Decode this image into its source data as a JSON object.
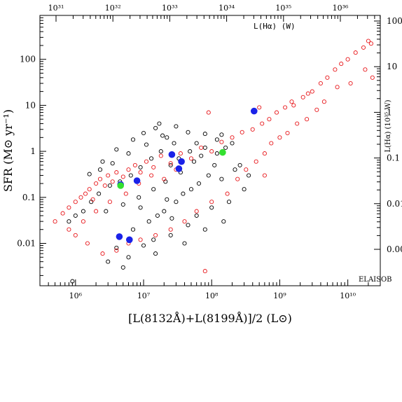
{
  "chart_data": {
    "type": "scatter",
    "title": "",
    "xlabel": "[L(8132Å)+L(8199Å)]/2 (L⊙)",
    "ylabel": "SFR (M⊙ yr⁻¹)",
    "top_axis_label": "L(Hα) (W)",
    "right_axis_label": "L(Hα) (10³⁵ W)",
    "annotation": "ELAISOB",
    "x_scale": "log",
    "y_scale": "log",
    "xlim": [
      300000,
      30000000000
    ],
    "ylim": [
      0.0012,
      900
    ],
    "x_ticks": [
      1000000,
      10000000,
      100000000,
      1000000000,
      10000000000
    ],
    "x_tick_labels": [
      "10⁶",
      "10⁷",
      "10⁸",
      "10⁹",
      "10¹⁰"
    ],
    "y_ticks": [
      0.01,
      0.1,
      1,
      10,
      100
    ],
    "y_tick_labels": [
      "0.01",
      "0.1",
      "1",
      "10",
      "100"
    ],
    "top_ticks": [
      31,
      32,
      33,
      34,
      35,
      36
    ],
    "top_tick_labels": [
      "10³¹",
      "10³²",
      "10³³",
      "10³⁴",
      "10³⁵",
      "10³⁶"
    ],
    "right_ticks": [
      0.001,
      0.01,
      0.1,
      1,
      10,
      100
    ],
    "right_tick_labels": [
      "0.00",
      "0.01",
      "0.1",
      "1",
      "10",
      "100"
    ],
    "colors": {
      "black_points": "#000000",
      "red_points": "#e8171b",
      "blue_points": "#1a22e8",
      "green_points": "#33e02f"
    },
    "series": [
      {
        "marker": "open-circle",
        "color": "#000000",
        "values": [
          [
            1600000.0,
            0.32
          ],
          [
            2500000.0,
            0.6
          ],
          [
            4000000.0,
            1.1
          ],
          [
            7000000.0,
            1.8
          ],
          [
            10000000.0,
            2.5
          ],
          [
            15000000.0,
            3.2
          ],
          [
            22000000.0,
            2.0
          ],
          [
            30000000.0,
            3.5
          ],
          [
            45000000.0,
            2.6
          ],
          [
            60000000.0,
            1.5
          ],
          [
            80000000.0,
            1.2
          ],
          [
            120000000.0,
            0.9
          ],
          [
            90000000.0,
            0.3
          ],
          [
            50000000.0,
            0.15
          ],
          [
            30000000.0,
            0.08
          ],
          [
            20000000.0,
            0.05
          ],
          [
            12000000.0,
            0.03
          ],
          [
            7000000.0,
            0.02
          ],
          [
            4000000.0,
            0.008
          ],
          [
            3000000.0,
            0.004
          ],
          [
            5000000.0,
            0.003
          ],
          [
            900000.0,
            0.0015
          ],
          [
            15000000.0,
            0.006
          ],
          [
            25000000.0,
            0.015
          ],
          [
            40000000.0,
            0.01
          ],
          [
            60000000.0,
            0.04
          ],
          [
            100000000.0,
            0.06
          ],
          [
            180000000.0,
            0.08
          ],
          [
            300000000.0,
            0.15
          ],
          [
            220000000.0,
            0.4
          ],
          [
            160000000.0,
            1.2
          ],
          [
            120000000.0,
            1.8
          ],
          [
            80000000.0,
            2.4
          ],
          [
            55000000.0,
            0.6
          ],
          [
            35000000.0,
            0.35
          ],
          [
            25000000.0,
            0.5
          ],
          [
            18000000.0,
            1.0
          ],
          [
            13000000.0,
            0.7
          ],
          [
            9000000.0,
            0.45
          ],
          [
            6500000.0,
            0.3
          ],
          [
            4500000.0,
            0.22
          ],
          [
            3200000.0,
            0.18
          ],
          [
            2200000.0,
            0.12
          ],
          [
            1700000.0,
            0.08
          ],
          [
            1300000.0,
            0.05
          ],
          [
            1000000.0,
            0.04
          ],
          [
            800000.0,
            0.03
          ],
          [
            2800000.0,
            0.05
          ],
          [
            5000000.0,
            0.07
          ],
          [
            8500000.0,
            0.1
          ],
          [
            14000000.0,
            0.15
          ],
          [
            21000000.0,
            0.22
          ],
          [
            33000000.0,
            0.7
          ],
          [
            48000000.0,
            1.0
          ],
          [
            70000000.0,
            0.8
          ],
          [
            110000000.0,
            0.5
          ],
          [
            28000000.0,
            1.5
          ],
          [
            19000000.0,
            2.2
          ],
          [
            11000000.0,
            1.4
          ],
          [
            6000000.0,
            0.9
          ],
          [
            3500000.0,
            0.55
          ],
          [
            2300000.0,
            0.4
          ],
          [
            9000000.0,
            0.06
          ],
          [
            16000000.0,
            0.04
          ],
          [
            22000000.0,
            0.09
          ],
          [
            38000000.0,
            0.12
          ],
          [
            65000000.0,
            0.2
          ],
          [
            140000000.0,
            0.25
          ],
          [
            260000000.0,
            0.5
          ],
          [
            150000000.0,
            0.03
          ],
          [
            80000000.0,
            0.02
          ],
          [
            45000000.0,
            0.025
          ],
          [
            26000000.0,
            0.035
          ],
          [
            14000000.0,
            0.012
          ],
          [
            10000000.0,
            0.009
          ],
          [
            6000000.0,
            0.005
          ],
          [
            17000000.0,
            4.0
          ],
          [
            140000000.0,
            2.3
          ],
          [
            200000000.0,
            1.5
          ],
          [
            350000000.0,
            0.3
          ]
        ]
      },
      {
        "marker": "open-circle",
        "color": "#e8171b",
        "values": [
          [
            500000.0,
            0.03
          ],
          [
            650000.0,
            0.045
          ],
          [
            800000.0,
            0.06
          ],
          [
            1000000.0,
            0.08
          ],
          [
            1200000.0,
            0.1
          ],
          [
            1400000.0,
            0.12
          ],
          [
            1600000.0,
            0.15
          ],
          [
            1800000.0,
            0.09
          ],
          [
            2000000.0,
            0.2
          ],
          [
            2300000.0,
            0.25
          ],
          [
            2700000.0,
            0.18
          ],
          [
            3000000.0,
            0.3
          ],
          [
            3500000.0,
            0.22
          ],
          [
            4000000.0,
            0.35
          ],
          [
            5000000.0,
            0.28
          ],
          [
            6000000.0,
            0.4
          ],
          [
            7500000.0,
            0.5
          ],
          [
            9000000.0,
            0.35
          ],
          [
            11000000.0,
            0.6
          ],
          [
            14000000.0,
            0.45
          ],
          [
            18000000.0,
            0.8
          ],
          [
            25000000.0,
            0.55
          ],
          [
            35000000.0,
            0.9
          ],
          [
            50000000.0,
            0.7
          ],
          [
            70000000.0,
            1.2
          ],
          [
            100000000.0,
            1.0
          ],
          [
            140000000.0,
            1.6
          ],
          [
            200000000.0,
            2.0
          ],
          [
            280000000.0,
            2.6
          ],
          [
            400000000.0,
            3.0
          ],
          [
            550000000.0,
            4.0
          ],
          [
            700000000.0,
            5.0
          ],
          [
            900000000.0,
            7.0
          ],
          [
            1200000000.0,
            9.0
          ],
          [
            1600000000.0,
            10
          ],
          [
            2200000000.0,
            15
          ],
          [
            3000000000.0,
            20
          ],
          [
            4000000000.0,
            30
          ],
          [
            5000000000.0,
            40
          ],
          [
            6500000000.0,
            60
          ],
          [
            8000000000.0,
            80
          ],
          [
            10000000000.0,
            100
          ],
          [
            13000000000.0,
            140
          ],
          [
            17000000000.0,
            180
          ],
          [
            20000000000.0,
            250
          ],
          [
            22000000000.0,
            220
          ],
          [
            23000000000.0,
            40
          ],
          [
            18000000000.0,
            60
          ],
          [
            11000000000.0,
            30
          ],
          [
            7000000000.0,
            25
          ],
          [
            4500000000.0,
            12
          ],
          [
            3500000000.0,
            8
          ],
          [
            2500000000.0,
            5
          ],
          [
            1800000000.0,
            4
          ],
          [
            1300000000.0,
            2.5
          ],
          [
            1000000000.0,
            2.0
          ],
          [
            750000000.0,
            1.5
          ],
          [
            600000000.0,
            0.9
          ],
          [
            450000000.0,
            0.6
          ],
          [
            320000000.0,
            0.4
          ],
          [
            240000000.0,
            0.25
          ],
          [
            170000000.0,
            0.12
          ],
          [
            100000000.0,
            0.08
          ],
          [
            60000000.0,
            0.05
          ],
          [
            40000000.0,
            0.03
          ],
          [
            25000000.0,
            0.02
          ],
          [
            15000000.0,
            0.015
          ],
          [
            9000000.0,
            0.012
          ],
          [
            6000000.0,
            0.01
          ],
          [
            4000000.0,
            0.007
          ],
          [
            2500000.0,
            0.006
          ],
          [
            1500000.0,
            0.01
          ],
          [
            800000.0,
            0.02
          ],
          [
            1000000.0,
            0.015
          ],
          [
            1300000.0,
            0.03
          ],
          [
            2000000.0,
            0.05
          ],
          [
            3200000.0,
            0.08
          ],
          [
            5500000.0,
            0.12
          ],
          [
            8500000.0,
            0.2
          ],
          [
            13000000.0,
            0.3
          ],
          [
            20000000.0,
            0.25
          ],
          [
            30000000.0,
            0.4
          ],
          [
            80000000.0,
            0.0025
          ],
          [
            500000000.0,
            9.0
          ],
          [
            1500000000.0,
            12
          ],
          [
            2600000000.0,
            18
          ],
          [
            90000000.0,
            7.0
          ],
          [
            600000000.0,
            0.3
          ]
        ]
      },
      {
        "marker": "filled-circle",
        "color": "#1a22e8",
        "values": [
          [
            420000000.0,
            7.5
          ],
          [
            26000000.0,
            0.85
          ],
          [
            36000000.0,
            0.6
          ],
          [
            33000000.0,
            0.42
          ],
          [
            8000000.0,
            0.23
          ],
          [
            4600000.0,
            0.19
          ],
          [
            4400000.0,
            0.014
          ],
          [
            6200000.0,
            0.012
          ]
        ]
      },
      {
        "marker": "filled-circle",
        "color": "#33e02f",
        "values": [
          [
            145000000.0,
            0.95
          ],
          [
            4600000.0,
            0.18
          ]
        ]
      }
    ]
  }
}
